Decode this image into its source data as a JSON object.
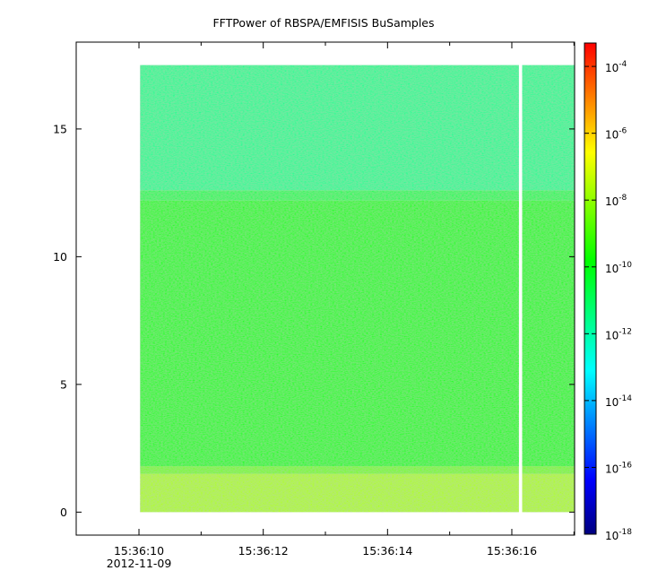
{
  "chart_data": {
    "type": "heatmap",
    "title": "FFTPower of RBSPA/EMFISIS  BuSamples",
    "xlabel": "",
    "ylabel": "",
    "x_ticks": [
      {
        "label": "15:36:10",
        "sec": 10
      },
      {
        "label": "15:36:12",
        "sec": 12
      },
      {
        "label": "15:36:14",
        "sec": 14
      },
      {
        "label": "15:36:16",
        "sec": 16
      }
    ],
    "x_minor_secs": [
      11,
      13,
      15,
      17
    ],
    "x_date_label": "2012-11-09",
    "xlim_sec": [
      8.99,
      17.01
    ],
    "ylim": [
      -0.9,
      18.4
    ],
    "y_ticks": [
      0,
      5,
      10,
      15
    ],
    "data_extent": {
      "t_start_sec": 10.02,
      "t_end_sec": 17.01,
      "y_min": 0,
      "y_max": 17.5
    },
    "gap": {
      "t_sec": 16.14
    },
    "bands": [
      {
        "y_from": 0,
        "y_to": 1.5,
        "log_power": -7.6
      },
      {
        "y_from": 1.5,
        "y_to": 1.8,
        "log_power": -8.3
      },
      {
        "y_from": 1.8,
        "y_to": 12.2,
        "log_power": -9.9
      },
      {
        "y_from": 12.2,
        "y_to": 12.6,
        "log_power": -10.9
      },
      {
        "y_from": 12.6,
        "y_to": 17.5,
        "log_power": -11.7
      }
    ],
    "colorbar": {
      "scale": "log",
      "min_exp": -18,
      "max_exp": -3.3,
      "ticks": [
        {
          "base": "10",
          "exp": "-4"
        },
        {
          "base": "10",
          "exp": "-6"
        },
        {
          "base": "10",
          "exp": "-8"
        },
        {
          "base": "10",
          "exp": "-10"
        },
        {
          "base": "10",
          "exp": "-12"
        },
        {
          "base": "10",
          "exp": "-14"
        },
        {
          "base": "10",
          "exp": "-16"
        },
        {
          "base": "10",
          "exp": "-18"
        }
      ],
      "colormap": [
        "#00007f",
        "#0000ff",
        "#0080ff",
        "#00ffff",
        "#00ff80",
        "#00ff00",
        "#80ff00",
        "#ffff00",
        "#ff8000",
        "#ff0000"
      ]
    }
  }
}
